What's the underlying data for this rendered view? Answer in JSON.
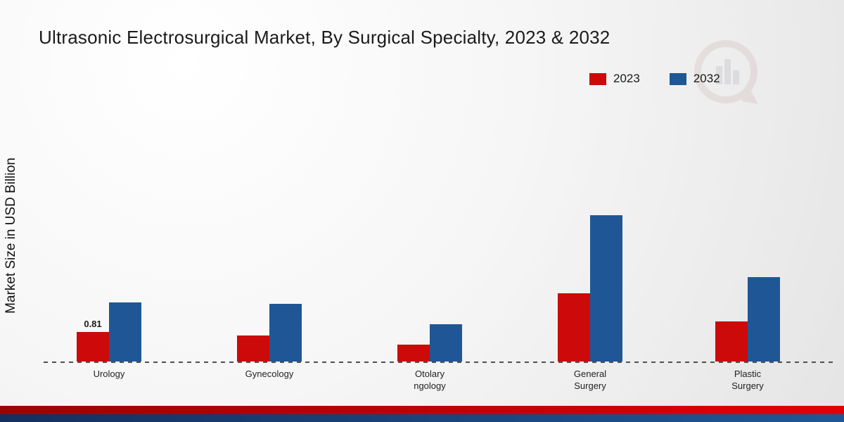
{
  "title": "Ultrasonic Electrosurgical Market, By Surgical Specialty, 2023 & 2032",
  "ylabel": "Market Size in USD Billion",
  "legend": [
    {
      "label": "2023",
      "color": "#cc0a0a"
    },
    {
      "label": "2032",
      "color": "#1f5796"
    }
  ],
  "chart_data": {
    "type": "bar",
    "title": "Ultrasonic Electrosurgical Market, By Surgical Specialty, 2023 & 2032",
    "xlabel": "",
    "ylabel": "Market Size in USD Billion",
    "ylim": [
      0,
      4.5
    ],
    "grid": false,
    "legend_position": "top-right",
    "baseline_dashed": true,
    "categories": [
      "Urology",
      "Gynecology",
      "Otolaryngology",
      "General Surgery",
      "Plastic Surgery"
    ],
    "category_label_lines": [
      [
        "Urology"
      ],
      [
        "Gynecology"
      ],
      [
        "Otolary",
        "ngology"
      ],
      [
        "General",
        "Surgery"
      ],
      [
        "Plastic",
        "Surgery"
      ]
    ],
    "series": [
      {
        "name": "2023",
        "color": "#cc0a0a",
        "values": [
          0.81,
          0.71,
          0.47,
          1.87,
          1.1
        ]
      },
      {
        "name": "2032",
        "color": "#1f5796",
        "values": [
          1.62,
          1.57,
          1.02,
          4.0,
          2.3
        ]
      }
    ],
    "value_labels": [
      {
        "series": 0,
        "index": 0,
        "text": "0.81"
      }
    ]
  }
}
